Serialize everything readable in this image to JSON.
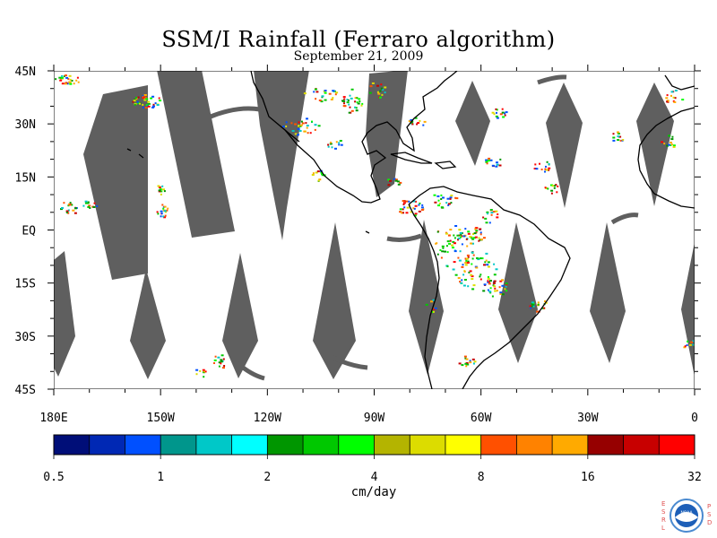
{
  "map": {
    "title": "SSM/I Rainfall (Ferraro algorithm)",
    "date": "September 21, 2009",
    "lat_labels": [
      "45N",
      "30N",
      "15N",
      "EQ",
      "15S",
      "30S",
      "45S"
    ],
    "lon_labels": [
      "180E",
      "150W",
      "120W",
      "90W",
      "60W",
      "30W",
      "0"
    ],
    "data_gap_color": "#5f5f5f",
    "coastline_color": "#000000"
  },
  "colorbar": {
    "unit": "cm/day",
    "tick_labels": [
      "0.5",
      "1",
      "2",
      "4",
      "8",
      "16",
      "32"
    ],
    "colors": [
      "#000e78",
      "#0028b4",
      "#0050ff",
      "#00968c",
      "#00c8c8",
      "#00ffff",
      "#009600",
      "#00c800",
      "#00ff00",
      "#b4b400",
      "#dcdc00",
      "#ffff00",
      "#ff5000",
      "#ff8200",
      "#ffaa00",
      "#960000",
      "#c80000",
      "#ff0000"
    ]
  },
  "logo": {
    "left_letters": [
      "E",
      "S",
      "R",
      "L"
    ],
    "right_letters": [
      "P",
      "S",
      "D"
    ],
    "seal_text": "NOAA"
  }
}
